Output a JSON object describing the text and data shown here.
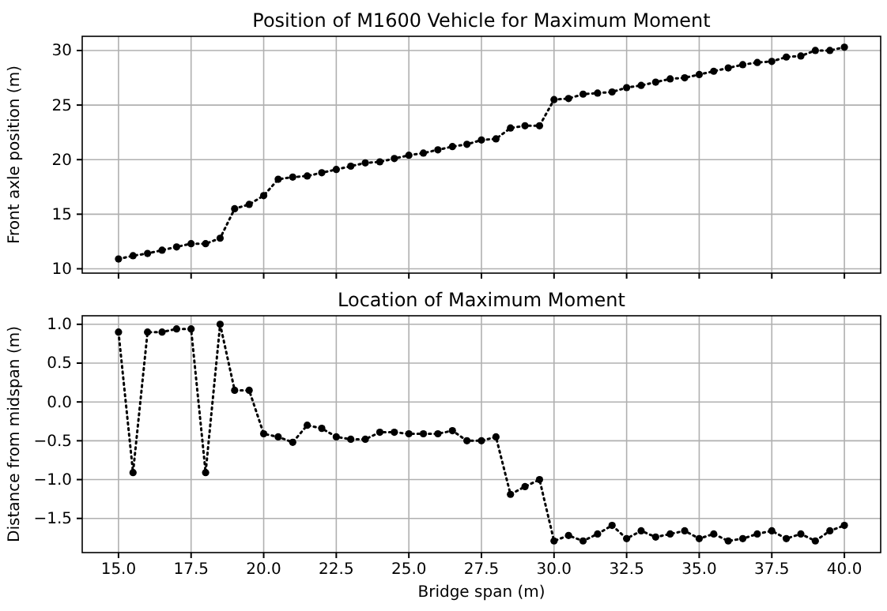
{
  "chart_data": [
    {
      "type": "line",
      "title": "Position of M1600 Vehicle for Maximum Moment",
      "ylabel": "Front axle position (m)",
      "x": [
        15,
        15.5,
        16,
        16.5,
        17,
        17.5,
        18,
        18.5,
        19,
        19.5,
        20,
        20.5,
        21,
        21.5,
        22,
        22.5,
        23,
        23.5,
        24,
        24.5,
        25,
        25.5,
        26,
        26.5,
        27,
        27.5,
        28,
        28.5,
        29,
        29.5,
        30,
        30.5,
        31,
        31.5,
        32,
        32.5,
        33,
        33.5,
        34,
        34.5,
        35,
        35.5,
        36,
        36.5,
        37,
        37.5,
        38,
        38.5,
        39,
        39.5,
        40
      ],
      "series": [
        {
          "color": "#000000",
          "values": [
            10.9,
            11.2,
            11.4,
            11.7,
            12.0,
            12.3,
            12.3,
            12.8,
            15.5,
            15.9,
            16.7,
            18.2,
            18.4,
            18.5,
            18.8,
            19.1,
            19.4,
            19.7,
            19.8,
            20.1,
            20.4,
            20.6,
            20.9,
            21.2,
            21.4,
            21.8,
            21.9,
            22.9,
            23.1,
            23.1,
            25.5,
            25.6,
            26.0,
            26.1,
            26.2,
            26.6,
            26.8,
            27.1,
            27.4,
            27.5,
            27.8,
            28.1,
            28.4,
            28.7,
            28.9,
            29.0,
            29.4,
            29.5,
            30.0,
            30.0,
            30.3
          ]
        }
      ],
      "xlim": [
        13.75,
        41.25
      ],
      "xticks": [
        {
          "value": 15,
          "label": null
        },
        {
          "value": 17.5,
          "label": null
        },
        {
          "value": 20,
          "label": null
        },
        {
          "value": 22.5,
          "label": null
        },
        {
          "value": 25,
          "label": null
        },
        {
          "value": 27.5,
          "label": null
        },
        {
          "value": 30,
          "label": null
        },
        {
          "value": 32.5,
          "label": null
        },
        {
          "value": 35,
          "label": null
        },
        {
          "value": 37.5,
          "label": null
        },
        {
          "value": 40,
          "label": null
        }
      ],
      "ylim": [
        9.6,
        31.3
      ],
      "yticks": [
        10,
        15,
        20,
        25,
        30
      ],
      "tick_labels": "y",
      "grid": true,
      "marker": "circle",
      "line_style": "dotted"
    },
    {
      "type": "line",
      "title": "Location of Maximum Moment",
      "xlabel": "Bridge span (m)",
      "ylabel": "Distance from midspan (m)",
      "x": [
        15,
        15.5,
        16,
        16.5,
        17,
        17.5,
        18,
        18.5,
        19,
        19.5,
        20,
        20.5,
        21,
        21.5,
        22,
        22.5,
        23,
        23.5,
        24,
        24.5,
        25,
        25.5,
        26,
        26.5,
        27,
        27.5,
        28,
        28.5,
        29,
        29.5,
        30,
        30.5,
        31,
        31.5,
        32,
        32.5,
        33,
        33.5,
        34,
        34.5,
        35,
        35.5,
        36,
        36.5,
        37,
        37.5,
        38,
        38.5,
        39,
        39.5,
        40
      ],
      "series": [
        {
          "color": "#000000",
          "values": [
            0.9,
            -0.91,
            0.9,
            0.9,
            0.94,
            0.94,
            -0.91,
            1.0,
            0.15,
            0.15,
            -0.41,
            -0.45,
            -0.52,
            -0.3,
            -0.34,
            -0.45,
            -0.48,
            -0.48,
            -0.39,
            -0.39,
            -0.41,
            -0.41,
            -0.41,
            -0.37,
            -0.5,
            -0.5,
            -0.45,
            -1.19,
            -1.09,
            -1.0,
            -1.79,
            -1.72,
            -1.79,
            -1.7,
            -1.59,
            -1.76,
            -1.66,
            -1.74,
            -1.7,
            -1.66,
            -1.76,
            -1.7,
            -1.79,
            -1.76,
            -1.7,
            -1.66,
            -1.76,
            -1.7,
            -1.79,
            -1.66,
            -1.59
          ]
        }
      ],
      "xlim": [
        13.75,
        41.25
      ],
      "xticks": [
        {
          "value": 15,
          "label": "15.0"
        },
        {
          "value": 17.5,
          "label": "17.5"
        },
        {
          "value": 20,
          "label": "20.0"
        },
        {
          "value": 22.5,
          "label": "22.5"
        },
        {
          "value": 25,
          "label": "25.0"
        },
        {
          "value": 27.5,
          "label": "27.5"
        },
        {
          "value": 30,
          "label": "30.0"
        },
        {
          "value": 32.5,
          "label": "32.5"
        },
        {
          "value": 35,
          "label": "35.0"
        },
        {
          "value": 37.5,
          "label": "37.5"
        },
        {
          "value": 40,
          "label": "40.0"
        }
      ],
      "ylim": [
        -1.94,
        1.11
      ],
      "yticks": [
        {
          "value": -1.5,
          "label": "−1.5"
        },
        {
          "value": -1,
          "label": "−1.0"
        },
        {
          "value": -0.5,
          "label": "−0.5"
        },
        {
          "value": 0,
          "label": "0.0"
        },
        {
          "value": 0.5,
          "label": "0.5"
        },
        {
          "value": 1,
          "label": "1.0"
        }
      ],
      "grid": true,
      "marker": "circle",
      "line_style": "dotted"
    }
  ]
}
